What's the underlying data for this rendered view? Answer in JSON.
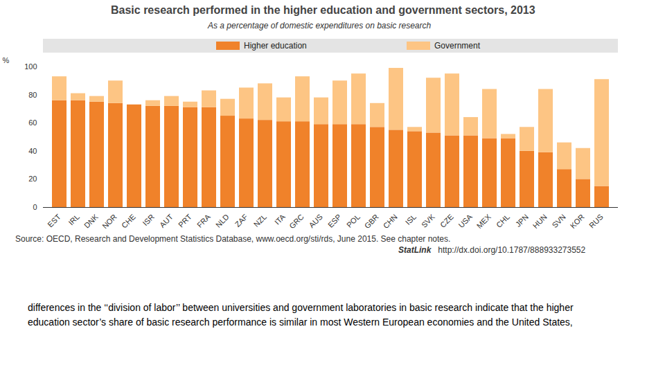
{
  "chart_data": {
    "type": "bar",
    "stacked": true,
    "title": "Basic research performed in the higher education and government sectors, 2013",
    "subtitle": "As a percentage of domestic expenditures on basic research",
    "y_label": "%",
    "categories": [
      "EST",
      "IRL",
      "DNK",
      "NOR",
      "CHE",
      "ISR",
      "AUT",
      "PRT",
      "FRA",
      "NLD",
      "ZAF",
      "NZL",
      "ITA",
      "GRC",
      "AUS",
      "ESP",
      "POL",
      "GBR",
      "CHN",
      "ISL",
      "SVK",
      "CZE",
      "USA",
      "MEX",
      "CHL",
      "JPN",
      "HUN",
      "SVN",
      "KOR",
      "RUS"
    ],
    "series": [
      {
        "name": "Higher education",
        "color": "#f0822a",
        "values": [
          76,
          76,
          75,
          74,
          73,
          72,
          72,
          71,
          71,
          65,
          63,
          62,
          61,
          61,
          59,
          59,
          59,
          57,
          55,
          54,
          53,
          51,
          51,
          49,
          49,
          40,
          39,
          27,
          20,
          15
        ]
      },
      {
        "name": "Government",
        "color": "#fdc584",
        "values": [
          17,
          5,
          4,
          16,
          0,
          4,
          7,
          4,
          12,
          12,
          22,
          26,
          17,
          32,
          19,
          31,
          36,
          17,
          44,
          3,
          39,
          44,
          13,
          35,
          3,
          17,
          45,
          19,
          22,
          76
        ]
      }
    ],
    "ylim": [
      0,
      100
    ],
    "yticks": [
      0,
      20,
      40,
      60,
      80,
      100
    ],
    "grid": false,
    "legend": "top",
    "source": "Source: OECD, Research and Development Statistics Database, www.oecd.org/sti/rds, June 2015. See chapter notes.",
    "statlink": [
      "StatLink",
      "http://dx.doi.org/10.1787/888933273552"
    ],
    "annotations": [
      "differences in the ‘‘division of labor’’ between universities and government laboratories in basic research indicate that the higher education sector’s share of basic research performance is similar in most Western European economies and the United States,"
    ]
  }
}
